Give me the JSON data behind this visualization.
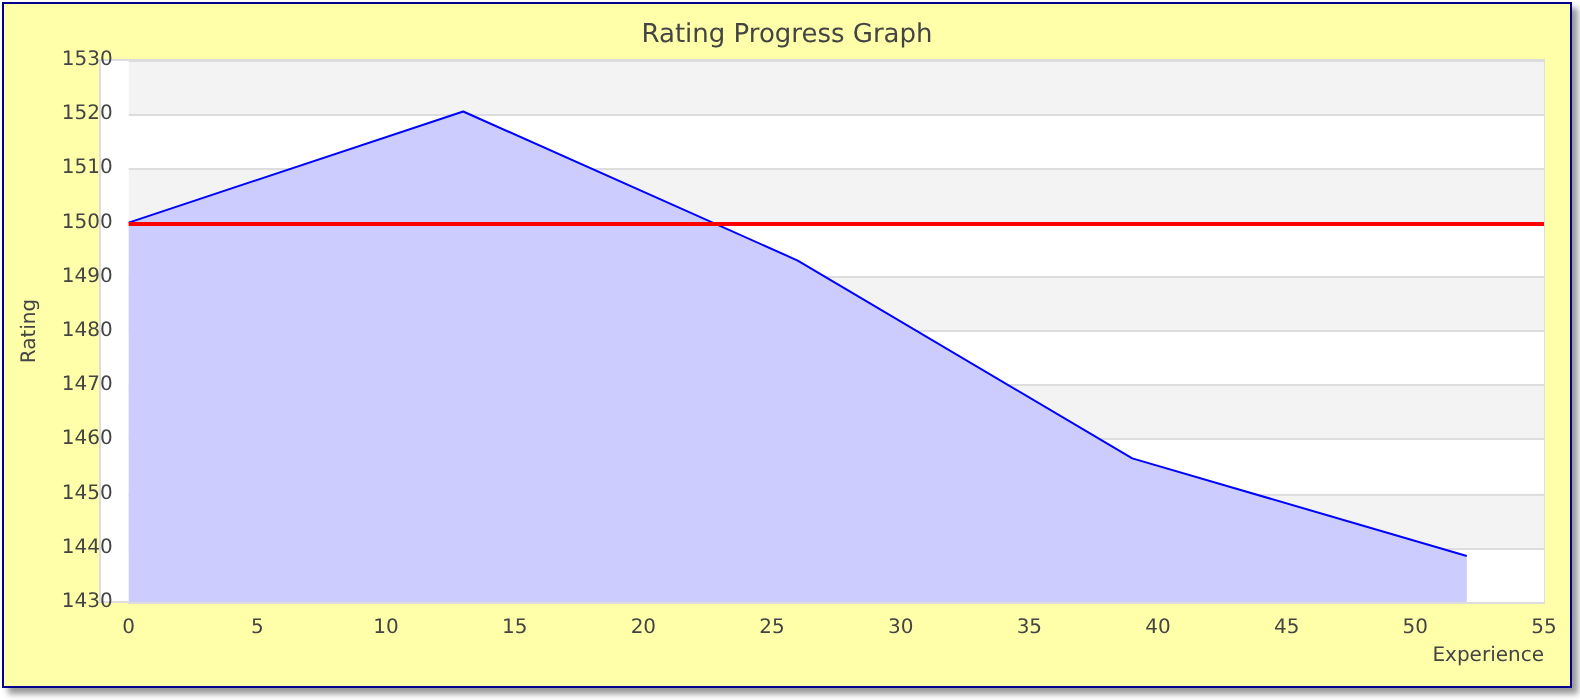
{
  "chart_data": {
    "type": "area",
    "title": "Rating Progress Graph",
    "xlabel": "Experience",
    "ylabel": "Rating",
    "x": [
      0,
      13,
      26,
      39,
      52
    ],
    "series": [
      {
        "color": "#0000ff",
        "values": [
          1500,
          1520.5,
          1493,
          1456.5,
          1438.5
        ]
      }
    ],
    "xlim": [
      0,
      55
    ],
    "xticks": [
      0,
      5,
      10,
      15,
      20,
      25,
      30,
      35,
      40,
      45,
      50,
      55
    ],
    "ylim": [
      1430,
      1530
    ],
    "yticks": [
      1430,
      1440,
      1450,
      1460,
      1470,
      1480,
      1490,
      1500,
      1510,
      1520,
      1530
    ],
    "ref_lines": [
      {
        "axis": "y",
        "value": 1500,
        "color": "#ff0000"
      }
    ],
    "grid": "y",
    "marker": "none"
  }
}
